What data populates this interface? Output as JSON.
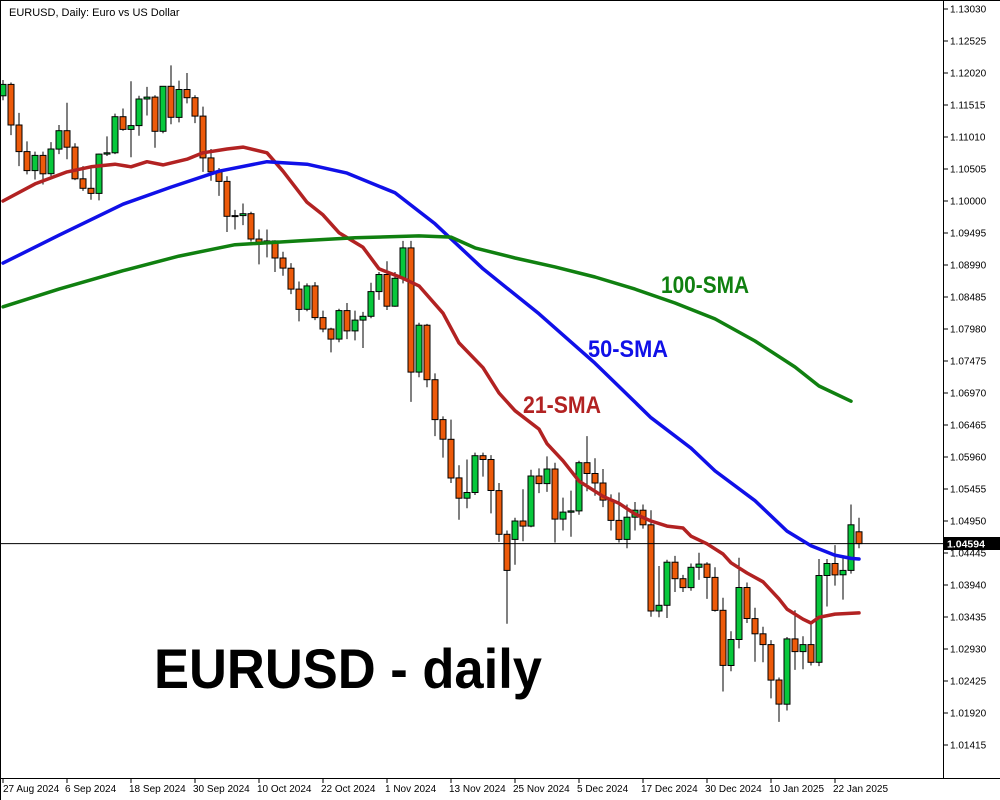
{
  "header": {
    "title": "EURUSD, Daily:  Euro vs US Dollar"
  },
  "watermark": {
    "text": "EURUSD - daily"
  },
  "price_axis": {
    "labels": [
      "1.13030",
      "1.12525",
      "1.12020",
      "1.11515",
      "1.11010",
      "1.10505",
      "1.10000",
      "1.09495",
      "1.08990",
      "1.08485",
      "1.07980",
      "1.07475",
      "1.06970",
      "1.06465",
      "1.05960",
      "1.05455",
      "1.04950",
      "1.04445",
      "1.03940",
      "1.03435",
      "1.02930",
      "1.02425",
      "1.01920",
      "1.01415"
    ]
  },
  "time_axis": {
    "labels": [
      {
        "text": "27 Aug 2024",
        "index": 0
      },
      {
        "text": "6 Sep 2024",
        "index": 8
      },
      {
        "text": "18 Sep 2024",
        "index": 16
      },
      {
        "text": "30 Sep 2024",
        "index": 24
      },
      {
        "text": "10 Oct 2024",
        "index": 32
      },
      {
        "text": "22 Oct 2024",
        "index": 40
      },
      {
        "text": "1 Nov 2024",
        "index": 48
      },
      {
        "text": "13 Nov 2024",
        "index": 56
      },
      {
        "text": "25 Nov 2024",
        "index": 64
      },
      {
        "text": "5 Dec 2024",
        "index": 72
      },
      {
        "text": "17 Dec 2024",
        "index": 80
      },
      {
        "text": "30 Dec 2024",
        "index": 88
      },
      {
        "text": "10 Jan 2025",
        "index": 96
      },
      {
        "text": "22 Jan 2025",
        "index": 104
      }
    ]
  },
  "chart_data": {
    "type": "candlestick",
    "symbol": "EURUSD",
    "timeframe": "Daily",
    "title": "EURUSD, Daily:  Euro vs US Dollar",
    "y_axis": {
      "max": 1.1303,
      "min": 1.01415,
      "tick_step": 0.00505,
      "grid": false
    },
    "last_price": 1.04594,
    "last_price_label": "1.04594",
    "colors": {
      "bull": "#07c83c",
      "bear": "#ed5a0a",
      "wick": "#000000",
      "sma21": "#b22222",
      "sma50": "#1010e8",
      "sma100": "#108010",
      "price_line": "#000000",
      "price_box_bg": "#000000",
      "price_box_text": "#ffffff"
    },
    "candles": [
      [
        1.1166,
        1.1191,
        1.1159,
        1.1184
      ],
      [
        1.1184,
        1.1187,
        1.1104,
        1.112
      ],
      [
        1.112,
        1.1139,
        1.1055,
        1.1078
      ],
      [
        1.1078,
        1.1094,
        1.1042,
        1.1048
      ],
      [
        1.1048,
        1.1078,
        1.1034,
        1.1072
      ],
      [
        1.1072,
        1.1078,
        1.1026,
        1.1043
      ],
      [
        1.1043,
        1.1093,
        1.1039,
        1.1082
      ],
      [
        1.1082,
        1.112,
        1.1074,
        1.1111
      ],
      [
        1.1111,
        1.1155,
        1.1066,
        1.1085
      ],
      [
        1.1085,
        1.1091,
        1.1033,
        1.1035
      ],
      [
        1.1035,
        1.1055,
        1.1016,
        1.102
      ],
      [
        1.102,
        1.1056,
        1.1002,
        1.1012
      ],
      [
        1.1012,
        1.1075,
        1.1001,
        1.1074
      ],
      [
        1.1074,
        1.1102,
        1.1071,
        1.1076
      ],
      [
        1.1076,
        1.1138,
        1.1074,
        1.1133
      ],
      [
        1.1133,
        1.1146,
        1.1111,
        1.1113
      ],
      [
        1.1113,
        1.1189,
        1.1069,
        1.1119
      ],
      [
        1.1119,
        1.1166,
        1.1103,
        1.1161
      ],
      [
        1.1161,
        1.118,
        1.1135,
        1.1164
      ],
      [
        1.1164,
        1.1167,
        1.1084,
        1.111
      ],
      [
        1.111,
        1.1181,
        1.1107,
        1.1181
      ],
      [
        1.1181,
        1.1214,
        1.1121,
        1.1132
      ],
      [
        1.1132,
        1.119,
        1.1124,
        1.1176
      ],
      [
        1.1176,
        1.1202,
        1.1154,
        1.1163
      ],
      [
        1.1163,
        1.1167,
        1.1123,
        1.1134
      ],
      [
        1.1134,
        1.1149,
        1.1046,
        1.1068
      ],
      [
        1.1068,
        1.1082,
        1.1032,
        1.1046
      ],
      [
        1.1046,
        1.1052,
        1.1008,
        1.1031
      ],
      [
        1.1031,
        1.1039,
        1.0951,
        1.0976
      ],
      [
        1.0976,
        1.0986,
        1.0955,
        1.0977
      ],
      [
        1.0977,
        1.0996,
        1.0962,
        1.098
      ],
      [
        1.098,
        1.0983,
        1.0936,
        1.094
      ],
      [
        1.094,
        1.0955,
        1.09,
        1.0935
      ],
      [
        1.0935,
        1.0955,
        1.0911,
        1.0937
      ],
      [
        1.0937,
        1.0938,
        1.0888,
        1.091
      ],
      [
        1.091,
        1.092,
        1.0882,
        1.0894
      ],
      [
        1.0894,
        1.0902,
        1.0853,
        1.0861
      ],
      [
        1.0861,
        1.0873,
        1.081,
        1.0829
      ],
      [
        1.0829,
        1.087,
        1.0826,
        1.0866
      ],
      [
        1.0866,
        1.0872,
        1.0812,
        1.0816
      ],
      [
        1.0816,
        1.0827,
        1.0793,
        1.0798
      ],
      [
        1.0798,
        1.08,
        1.0761,
        1.0782
      ],
      [
        1.0782,
        1.083,
        1.0777,
        1.0827
      ],
      [
        1.0827,
        1.0839,
        1.0782,
        1.0795
      ],
      [
        1.0795,
        1.0827,
        1.078,
        1.0812
      ],
      [
        1.0812,
        1.0825,
        1.0768,
        1.0818
      ],
      [
        1.0818,
        1.0871,
        1.0815,
        1.0857
      ],
      [
        1.0857,
        1.0888,
        1.0844,
        1.0884
      ],
      [
        1.0884,
        1.0905,
        1.0828,
        1.0834
      ],
      [
        1.0834,
        1.0888,
        1.0833,
        1.0878
      ],
      [
        1.0878,
        1.0937,
        1.087,
        1.0926
      ],
      [
        1.0926,
        1.0937,
        1.0683,
        1.073
      ],
      [
        1.073,
        1.0808,
        1.0722,
        1.0804
      ],
      [
        1.0804,
        1.0806,
        1.0706,
        1.0718
      ],
      [
        1.0718,
        1.0728,
        1.0629,
        1.0655
      ],
      [
        1.0655,
        1.066,
        1.0595,
        1.0624
      ],
      [
        1.0624,
        1.0655,
        1.0555,
        1.0563
      ],
      [
        1.0563,
        1.0583,
        1.0497,
        1.0531
      ],
      [
        1.0531,
        1.0592,
        1.0515,
        1.054
      ],
      [
        1.054,
        1.0603,
        1.0536,
        1.0598
      ],
      [
        1.0598,
        1.0603,
        1.0565,
        1.0592
      ],
      [
        1.0592,
        1.0599,
        1.0507,
        1.0543
      ],
      [
        1.0543,
        1.0555,
        1.0462,
        1.0474
      ],
      [
        1.0474,
        1.048,
        1.0333,
        1.0417
      ],
      [
        1.0466,
        1.05,
        1.0426,
        1.0495
      ],
      [
        1.0495,
        1.0545,
        1.0463,
        1.0487
      ],
      [
        1.0487,
        1.0576,
        1.0485,
        1.0566
      ],
      [
        1.0566,
        1.0578,
        1.0539,
        1.0554
      ],
      [
        1.0554,
        1.0597,
        1.0541,
        1.0577
      ],
      [
        1.0577,
        1.0587,
        1.0461,
        1.0498
      ],
      [
        1.0498,
        1.0532,
        1.048,
        1.0509
      ],
      [
        1.0509,
        1.0543,
        1.047,
        1.0511
      ],
      [
        1.0511,
        1.059,
        1.0505,
        1.0587
      ],
      [
        1.0587,
        1.0629,
        1.0542,
        1.057
      ],
      [
        1.057,
        1.0594,
        1.0535,
        1.0555
      ],
      [
        1.0555,
        1.0577,
        1.0517,
        1.0528
      ],
      [
        1.0528,
        1.0537,
        1.048,
        1.0496
      ],
      [
        1.0496,
        1.054,
        1.0461,
        1.0466
      ],
      [
        1.0466,
        1.0521,
        1.0452,
        1.0501
      ],
      [
        1.0501,
        1.0525,
        1.048,
        1.0512
      ],
      [
        1.0512,
        1.0521,
        1.0483,
        1.0489
      ],
      [
        1.0489,
        1.0512,
        1.0344,
        1.0353
      ],
      [
        1.0353,
        1.0424,
        1.0343,
        1.0362
      ],
      [
        1.0362,
        1.0434,
        1.0342,
        1.043
      ],
      [
        1.043,
        1.044,
        1.0383,
        1.0404
      ],
      [
        1.0404,
        1.041,
        1.0383,
        1.039
      ],
      [
        1.039,
        1.0428,
        1.0385,
        1.0422
      ],
      [
        1.0422,
        1.0445,
        1.0402,
        1.0427
      ],
      [
        1.0427,
        1.043,
        1.0372,
        1.0406
      ],
      [
        1.0406,
        1.0422,
        1.0352,
        1.0354
      ],
      [
        1.0354,
        1.0374,
        1.0226,
        1.0267
      ],
      [
        1.0267,
        1.0321,
        1.0258,
        1.0308
      ],
      [
        1.0308,
        1.0437,
        1.0294,
        1.039
      ],
      [
        1.039,
        1.0398,
        1.0334,
        1.0341
      ],
      [
        1.0341,
        1.0358,
        1.0273,
        1.0317
      ],
      [
        1.0317,
        1.0328,
        1.0272,
        1.03
      ],
      [
        1.03,
        1.0307,
        1.0215,
        1.0244
      ],
      [
        1.0244,
        1.0248,
        1.0178,
        1.0206
      ],
      [
        1.0206,
        1.0312,
        1.0196,
        1.0309
      ],
      [
        1.0309,
        1.0354,
        1.026,
        1.0289
      ],
      [
        1.0289,
        1.0313,
        1.0261,
        1.03
      ],
      [
        1.03,
        1.0332,
        1.0267,
        1.0272
      ],
      [
        1.0272,
        1.0435,
        1.0266,
        1.0409
      ],
      [
        1.0409,
        1.0435,
        1.036,
        1.0428
      ],
      [
        1.0428,
        1.0457,
        1.0393,
        1.041
      ],
      [
        1.041,
        1.044,
        1.0371,
        1.0417
      ],
      [
        1.0417,
        1.0521,
        1.0412,
        1.0489
      ],
      [
        1.0478,
        1.05,
        1.0452,
        1.04594
      ]
    ],
    "overlays": [
      {
        "name": "sma21",
        "label": "21-SMA",
        "period": 21,
        "color": "#b22222",
        "points": [
          [
            0,
            1.1
          ],
          [
            4,
            1.1027
          ],
          [
            8,
            1.1046
          ],
          [
            11,
            1.1054
          ],
          [
            14,
            1.1058
          ],
          [
            16,
            1.1054
          ],
          [
            18,
            1.1062
          ],
          [
            20,
            1.1057
          ],
          [
            23,
            1.1066
          ],
          [
            25,
            1.1076
          ],
          [
            28,
            1.1082
          ],
          [
            30,
            1.1085
          ],
          [
            33,
            1.1076
          ],
          [
            35,
            1.1047
          ],
          [
            38,
            1.0998
          ],
          [
            40,
            1.0978
          ],
          [
            42,
            1.095
          ],
          [
            45,
            1.0927
          ],
          [
            47,
            1.0893
          ],
          [
            50,
            1.0878
          ],
          [
            52,
            1.0866
          ],
          [
            55,
            1.0823
          ],
          [
            57,
            1.0776
          ],
          [
            60,
            1.0737
          ],
          [
            62,
            1.0697
          ],
          [
            64,
            1.0669
          ],
          [
            67,
            1.064
          ],
          [
            68,
            1.0617
          ],
          [
            70,
            1.059
          ],
          [
            72,
            1.0558
          ],
          [
            75,
            1.0534
          ],
          [
            77,
            1.0523
          ],
          [
            79,
            1.0506
          ],
          [
            81,
            1.0495
          ],
          [
            83,
            1.0487
          ],
          [
            85,
            1.0484
          ],
          [
            86,
            1.0471
          ],
          [
            88,
            1.0459
          ],
          [
            90,
            1.0443
          ],
          [
            91,
            1.0429
          ],
          [
            93,
            1.0413
          ],
          [
            95,
            1.0399
          ],
          [
            97,
            1.0372
          ],
          [
            98,
            1.0356
          ],
          [
            100,
            1.034
          ],
          [
            101,
            1.0334
          ],
          [
            102,
            1.0343
          ],
          [
            104,
            1.0348
          ],
          [
            107,
            1.035
          ]
        ]
      },
      {
        "name": "sma50",
        "label": "50-SMA",
        "period": 50,
        "color": "#1010e8",
        "points": [
          [
            0,
            1.0902
          ],
          [
            7,
            1.0946
          ],
          [
            15,
            1.0995
          ],
          [
            21,
            1.1022
          ],
          [
            27,
            1.1047
          ],
          [
            33,
            1.1062
          ],
          [
            38,
            1.1058
          ],
          [
            43,
            1.1044
          ],
          [
            49,
            1.1013
          ],
          [
            54,
            1.0964
          ],
          [
            60,
            1.0893
          ],
          [
            67,
            1.0822
          ],
          [
            74,
            1.0744
          ],
          [
            81,
            1.0658
          ],
          [
            86,
            1.061
          ],
          [
            89,
            1.0574
          ],
          [
            94,
            1.0527
          ],
          [
            98,
            1.0479
          ],
          [
            101,
            1.0456
          ],
          [
            104,
            1.0441
          ],
          [
            106,
            1.0436
          ],
          [
            107,
            1.0435
          ]
        ]
      },
      {
        "name": "sma100",
        "label": "100-SMA",
        "period": 100,
        "color": "#108010",
        "points": [
          [
            0,
            1.0833
          ],
          [
            7,
            1.0861
          ],
          [
            15,
            1.089
          ],
          [
            22,
            1.0913
          ],
          [
            29,
            1.0931
          ],
          [
            37,
            1.0937
          ],
          [
            44,
            1.0942
          ],
          [
            52,
            1.0945
          ],
          [
            56,
            1.0943
          ],
          [
            59,
            1.0926
          ],
          [
            64,
            1.091
          ],
          [
            69,
            1.0896
          ],
          [
            74,
            1.088
          ],
          [
            79,
            1.0861
          ],
          [
            84,
            1.0839
          ],
          [
            89,
            1.0814
          ],
          [
            94,
            1.0779
          ],
          [
            99,
            1.0738
          ],
          [
            102,
            1.0708
          ],
          [
            106,
            1.0684
          ]
        ]
      }
    ]
  }
}
